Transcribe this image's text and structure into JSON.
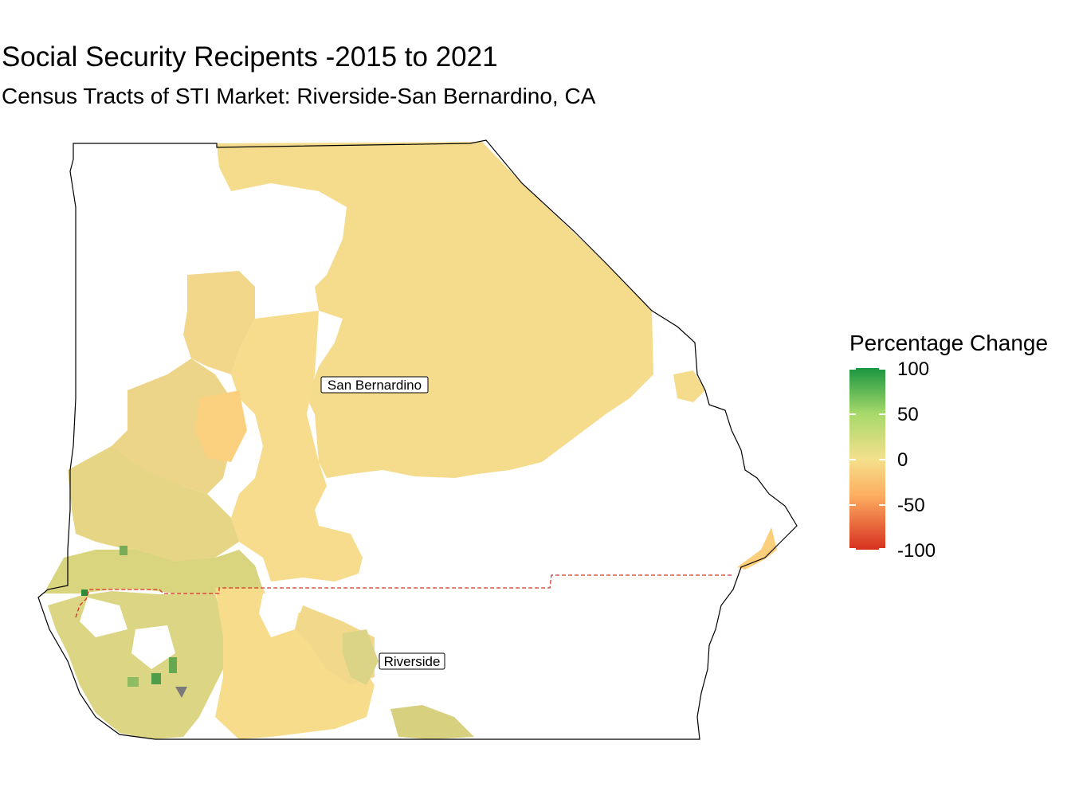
{
  "title": "Social Security Recipents -2015 to 2021",
  "subtitle": "Census Tracts of STI Market: Riverside-San Bernardino, CA",
  "legend": {
    "title": "Percentage Change",
    "ticks": [
      {
        "label": "100",
        "value": 100
      },
      {
        "label": "50",
        "value": 50
      },
      {
        "label": "0",
        "value": 0
      },
      {
        "label": "-50",
        "value": -50
      },
      {
        "label": "-100",
        "value": -100
      }
    ],
    "scale": {
      "min": -100,
      "max": 100,
      "low_color": "#d7301f",
      "mid_color": "#f4e08c",
      "high_color": "#1a9641"
    }
  },
  "map": {
    "counties": [
      {
        "name": "San Bernardino"
      },
      {
        "name": "Riverside"
      }
    ],
    "county_border_color": "#d73027",
    "outline_color": "#000000",
    "no_data_color": "#7a7a7a"
  }
}
